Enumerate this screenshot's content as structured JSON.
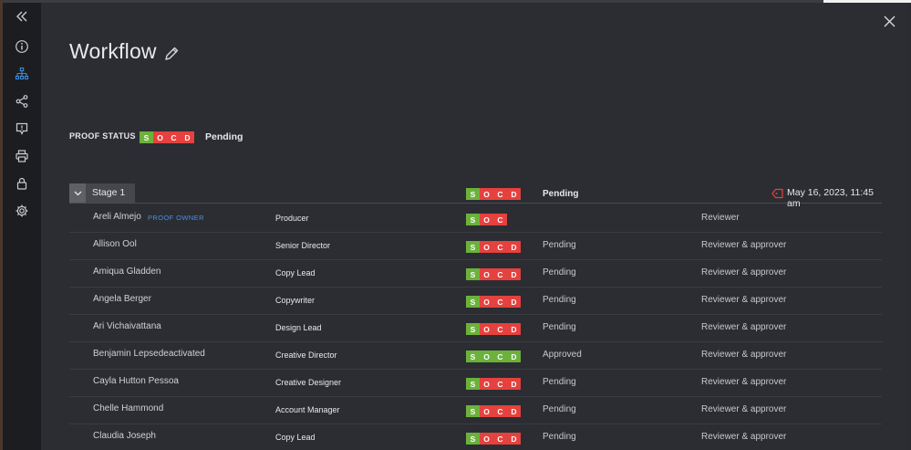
{
  "title": "Workflow",
  "proof_status": {
    "label": "PROOF STATUS",
    "socd": [
      {
        "l": "S",
        "c": "g"
      },
      {
        "l": "O",
        "c": "r"
      },
      {
        "l": "C",
        "c": "r"
      },
      {
        "l": "D",
        "c": "r"
      }
    ],
    "status": "Pending"
  },
  "stage": {
    "name": "Stage 1",
    "socd": [
      {
        "l": "S",
        "c": "g"
      },
      {
        "l": "O",
        "c": "r"
      },
      {
        "l": "C",
        "c": "r"
      },
      {
        "l": "D",
        "c": "r"
      }
    ],
    "status": "Pending",
    "due": "May 16, 2023, 11:45 am"
  },
  "rows": [
    {
      "name": "Areli Almejo",
      "tag": "PROOF OWNER",
      "role": "Producer",
      "socd": [
        {
          "l": "S",
          "c": "g"
        },
        {
          "l": "O",
          "c": "r"
        },
        {
          "l": "C",
          "c": "r"
        }
      ],
      "status": "",
      "perm": "Reviewer"
    },
    {
      "name": "Allison Ool",
      "tag": "",
      "role": "Senior Director",
      "socd": [
        {
          "l": "S",
          "c": "g"
        },
        {
          "l": "O",
          "c": "r"
        },
        {
          "l": "C",
          "c": "r"
        },
        {
          "l": "D",
          "c": "r"
        }
      ],
      "status": "Pending",
      "perm": "Reviewer & approver"
    },
    {
      "name": "Amiqua Gladden",
      "tag": "",
      "role": "Copy Lead",
      "socd": [
        {
          "l": "S",
          "c": "g"
        },
        {
          "l": "O",
          "c": "r"
        },
        {
          "l": "C",
          "c": "r"
        },
        {
          "l": "D",
          "c": "r"
        }
      ],
      "status": "Pending",
      "perm": "Reviewer & approver"
    },
    {
      "name": "Angela Berger",
      "tag": "",
      "role": "Copywriter",
      "socd": [
        {
          "l": "S",
          "c": "g"
        },
        {
          "l": "O",
          "c": "r"
        },
        {
          "l": "C",
          "c": "r"
        },
        {
          "l": "D",
          "c": "r"
        }
      ],
      "status": "Pending",
      "perm": "Reviewer & approver"
    },
    {
      "name": "Ari Vichaivattana",
      "tag": "",
      "role": "Design Lead",
      "socd": [
        {
          "l": "S",
          "c": "g"
        },
        {
          "l": "O",
          "c": "r"
        },
        {
          "l": "C",
          "c": "r"
        },
        {
          "l": "D",
          "c": "r"
        }
      ],
      "status": "Pending",
      "perm": "Reviewer & approver"
    },
    {
      "name": "Benjamin Lepsedeactivated",
      "tag": "",
      "role": "Creative Director",
      "socd": [
        {
          "l": "S",
          "c": "g"
        },
        {
          "l": "O",
          "c": "g"
        },
        {
          "l": "C",
          "c": "g"
        },
        {
          "l": "D",
          "c": "g"
        }
      ],
      "status": "Approved",
      "perm": "Reviewer & approver"
    },
    {
      "name": "Cayla Hutton Pessoa",
      "tag": "",
      "role": "Creative Designer",
      "socd": [
        {
          "l": "S",
          "c": "g"
        },
        {
          "l": "O",
          "c": "r"
        },
        {
          "l": "C",
          "c": "r"
        },
        {
          "l": "D",
          "c": "r"
        }
      ],
      "status": "Pending",
      "perm": "Reviewer & approver"
    },
    {
      "name": "Chelle Hammond",
      "tag": "",
      "role": "Account Manager",
      "socd": [
        {
          "l": "S",
          "c": "g"
        },
        {
          "l": "O",
          "c": "r"
        },
        {
          "l": "C",
          "c": "r"
        },
        {
          "l": "D",
          "c": "r"
        }
      ],
      "status": "Pending",
      "perm": "Reviewer & approver"
    },
    {
      "name": "Claudia Joseph",
      "tag": "",
      "role": "Copy Lead",
      "socd": [
        {
          "l": "S",
          "c": "g"
        },
        {
          "l": "O",
          "c": "r"
        },
        {
          "l": "C",
          "c": "r"
        },
        {
          "l": "D",
          "c": "r"
        }
      ],
      "status": "Pending",
      "perm": "Reviewer & approver"
    }
  ],
  "sidebar_icons": [
    "collapse-icon",
    "info-icon",
    "workflow-icon",
    "share-icon",
    "comment-icon",
    "print-icon",
    "lock-icon",
    "settings-icon"
  ],
  "colors": {
    "approved": "#6bb13b",
    "not_done": "#e5413e",
    "owner_tag": "#4c8fe0",
    "due_icon": "#e5413e",
    "active_nav": "#3d8bd8"
  }
}
